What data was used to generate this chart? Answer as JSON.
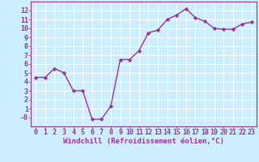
{
  "x": [
    0,
    1,
    2,
    3,
    4,
    5,
    6,
    7,
    8,
    9,
    10,
    11,
    12,
    13,
    14,
    15,
    16,
    17,
    18,
    19,
    20,
    21,
    22,
    23
  ],
  "y": [
    4.5,
    4.5,
    5.5,
    5.0,
    3.0,
    3.0,
    -0.2,
    -0.2,
    1.3,
    6.5,
    6.5,
    7.5,
    9.5,
    9.8,
    11.0,
    11.5,
    12.2,
    11.2,
    10.8,
    10.0,
    9.9,
    9.9,
    10.5,
    10.7
  ],
  "line_color": "#993399",
  "marker": "D",
  "marker_size": 2.2,
  "linewidth": 1.0,
  "xlabel": "Windchill (Refroidissement éolien,°C)",
  "xlim": [
    -0.5,
    23.5
  ],
  "ylim": [
    -1,
    13
  ],
  "yticks": [
    0,
    1,
    2,
    3,
    4,
    5,
    6,
    7,
    8,
    9,
    10,
    11,
    12
  ],
  "ytick_labels": [
    "-0",
    "1",
    "2",
    "3",
    "4",
    "5",
    "6",
    "7",
    "8",
    "9",
    "10",
    "11",
    "12"
  ],
  "xticks": [
    0,
    1,
    2,
    3,
    4,
    5,
    6,
    7,
    8,
    9,
    10,
    11,
    12,
    13,
    14,
    15,
    16,
    17,
    18,
    19,
    20,
    21,
    22,
    23
  ],
  "bg_color": "#cceeff",
  "grid_color": "#aadddd",
  "tick_label_color": "#993399",
  "xlabel_color": "#993399",
  "xlabel_fontsize": 6.5,
  "tick_fontsize": 6.0
}
